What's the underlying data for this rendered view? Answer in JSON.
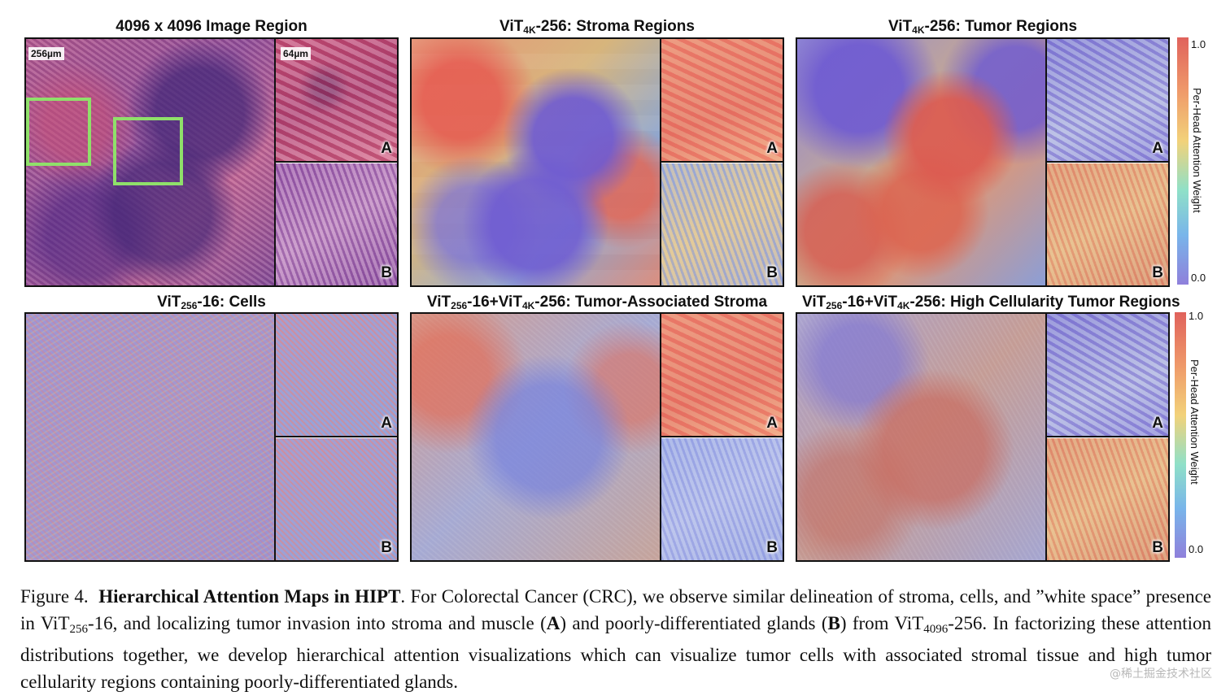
{
  "figure": {
    "panels": [
      {
        "title": "4096 x 4096 Image Region",
        "inset_a": "A",
        "inset_b": "B",
        "scale_main": "256µm",
        "scale_inset": "64µm"
      },
      {
        "title_pre": "ViT",
        "title_sub": "4K",
        "title_post": "-256: Stroma Regions",
        "inset_a": "A",
        "inset_b": "B"
      },
      {
        "title_pre": "ViT",
        "title_sub": "4K",
        "title_post": "-256: Tumor Regions",
        "inset_a": "A",
        "inset_b": "B"
      },
      {
        "title_pre": "ViT",
        "title_sub": "256",
        "title_post": "-16: Cells",
        "inset_a": "A",
        "inset_b": "B"
      },
      {
        "title_pre": "ViT",
        "title_sub": "256",
        "title_mid": "-16+ViT",
        "title_sub2": "4K",
        "title_post": "-256: Tumor-Associated Stroma",
        "inset_a": "A",
        "inset_b": "B"
      },
      {
        "title_pre": "ViT",
        "title_sub": "256",
        "title_mid": "-16+ViT",
        "title_sub2": "4K",
        "title_post": "-256: High Cellularity Tumor Regions",
        "inset_a": "A",
        "inset_b": "B"
      }
    ],
    "colorbar": {
      "max": "1.0",
      "min": "0.0",
      "label": "Per-Head Attention Weight"
    }
  },
  "caption": {
    "lead": "Figure 4.",
    "bold_title": "Hierarchical Attention Maps in HIPT",
    "text1": ". For Colorectal Cancer (CRC), we observe similar delineation of stroma, cells, and ”white space” presence in ViT",
    "sub1": "256",
    "text2": "-16, and localizing tumor invasion into stroma and muscle (",
    "bold_a": "A",
    "text3": ") and poorly-differentiated glands (",
    "bold_b": "B",
    "text4": ") from ViT",
    "sub2": "4096",
    "text5": "-256. In factorizing these attention distributions together, we develop hierarchical attention visualizations which can visualize tumor cells with associated stromal tissue and high tumor cellularity regions containing poorly-differentiated glands."
  },
  "watermark": "@稀土掘金技术社区"
}
